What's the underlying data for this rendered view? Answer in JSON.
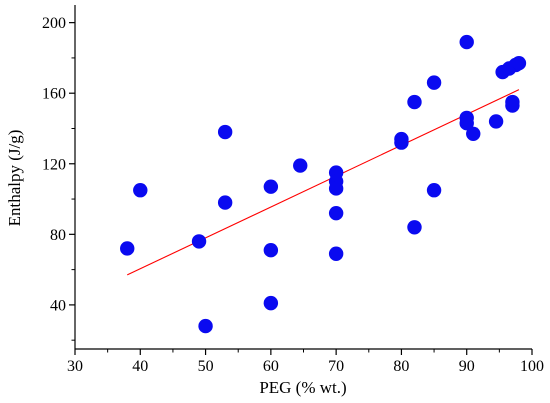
{
  "chart_data": {
    "type": "scatter",
    "xlabel": "PEG (% wt.)",
    "ylabel": "Enthalpy (J/g)",
    "xlim": [
      30,
      100
    ],
    "ylim": [
      15,
      210
    ],
    "x_ticks": [
      30,
      40,
      50,
      60,
      70,
      80,
      90,
      100
    ],
    "y_ticks": [
      40,
      80,
      120,
      160,
      200
    ],
    "x_tick_labels": [
      "30",
      "40",
      "50",
      "60",
      "70",
      "80",
      "90",
      "100"
    ],
    "y_tick_labels": [
      "40",
      "80",
      "120",
      "160",
      "200"
    ],
    "grid": false,
    "legend": "none",
    "colors": {
      "points": "#0a0af0",
      "fit_line": "#ff0000"
    },
    "series": [
      {
        "points": [
          [
            38,
            72
          ],
          [
            40,
            105
          ],
          [
            49,
            76
          ],
          [
            50,
            28
          ],
          [
            53,
            138
          ],
          [
            53,
            98
          ],
          [
            60,
            107
          ],
          [
            60,
            71
          ],
          [
            60,
            41
          ],
          [
            64.5,
            119
          ],
          [
            70,
            115
          ],
          [
            70,
            110
          ],
          [
            70,
            106
          ],
          [
            70,
            92
          ],
          [
            70,
            69
          ],
          [
            80,
            134
          ],
          [
            80,
            132
          ],
          [
            82,
            155
          ],
          [
            82,
            84
          ],
          [
            85,
            166
          ],
          [
            85,
            105
          ],
          [
            90,
            189
          ],
          [
            90,
            146
          ],
          [
            90,
            143
          ],
          [
            91,
            137
          ],
          [
            94.5,
            144
          ],
          [
            95.5,
            172
          ],
          [
            96.5,
            174
          ],
          [
            97,
            155
          ],
          [
            97.5,
            176
          ],
          [
            98,
            177
          ],
          [
            97,
            153
          ]
        ]
      }
    ],
    "fit_line": {
      "x": [
        38,
        98
      ],
      "y": [
        57,
        162
      ]
    }
  }
}
